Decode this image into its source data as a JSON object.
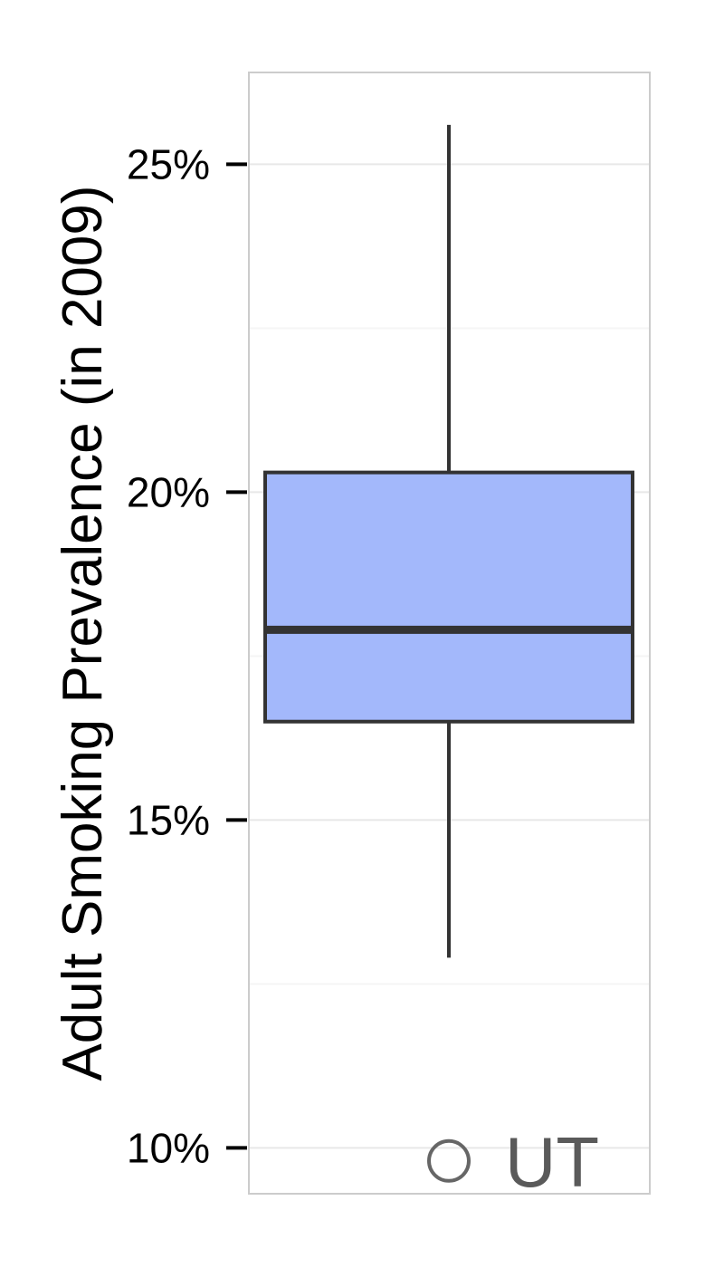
{
  "chart_data": {
    "type": "box",
    "ylabel": "Adult Smoking Prevalence (in 2009)",
    "ylim": [
      9.3,
      26.4
    ],
    "y_ticks": [
      {
        "value": 10,
        "label": "10%"
      },
      {
        "value": 15,
        "label": "15%"
      },
      {
        "value": 20,
        "label": "20%"
      },
      {
        "value": 25,
        "label": "25%"
      }
    ],
    "minor_grid": [
      12.5,
      17.5,
      22.5
    ],
    "grid": true,
    "box": {
      "whisker_low": 12.9,
      "q1": 16.5,
      "median": 17.9,
      "q3": 20.3,
      "whisker_high": 25.6
    },
    "outliers": [
      {
        "value": 9.8,
        "label": "UT"
      }
    ],
    "colors": {
      "box_fill": "#a3b8fb",
      "box_stroke": "#333333",
      "grid_major": "#e8e8e8",
      "grid_minor": "#f5f5f5",
      "panel_border": "#cccccc",
      "outlier_stroke": "#666666"
    }
  }
}
